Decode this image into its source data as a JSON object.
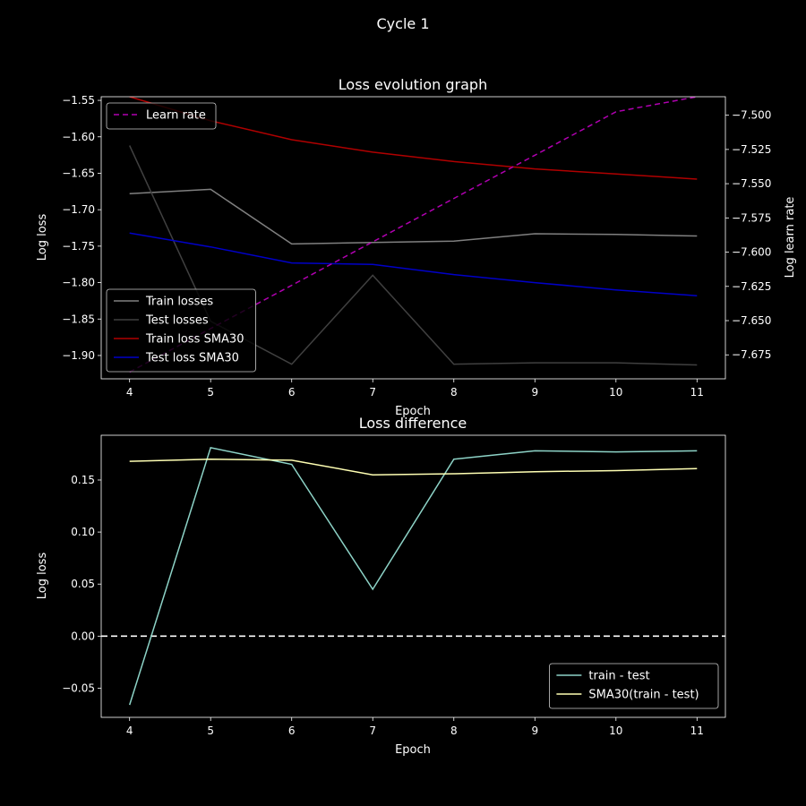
{
  "figure": {
    "suptitle": "Cycle 1"
  },
  "chart_data": [
    {
      "type": "line",
      "title": "Loss evolution graph",
      "xlabel": "Epoch",
      "ylabel": "Log loss",
      "ylabel_right": "Log learn rate",
      "x": [
        4,
        5,
        6,
        7,
        8,
        9,
        10,
        11
      ],
      "xlim": [
        3.65,
        11.35
      ],
      "ylim": [
        -1.932,
        -1.545
      ],
      "ylim_right": [
        -7.6925,
        -7.4865
      ],
      "yticks": [
        -1.55,
        -1.6,
        -1.65,
        -1.7,
        -1.75,
        -1.8,
        -1.85,
        -1.9
      ],
      "yticks_right": [
        -7.5,
        -7.525,
        -7.55,
        -7.575,
        -7.6,
        -7.625,
        -7.65,
        -7.675
      ],
      "grid": false,
      "series": [
        {
          "name": "Train losses",
          "axis": "left",
          "color": "#808080",
          "dash": "",
          "values": [
            -1.678,
            -1.672,
            -1.747,
            -1.745,
            -1.743,
            -1.733,
            -1.734,
            -1.736
          ]
        },
        {
          "name": "Test losses",
          "axis": "left",
          "color": "#404040",
          "dash": "",
          "values": [
            -1.612,
            -1.853,
            -1.912,
            -1.79,
            -1.912,
            -1.91,
            -1.91,
            -1.913
          ]
        },
        {
          "name": "Train loss SMA30",
          "axis": "left",
          "color": "#b00000",
          "dash": "",
          "values": [
            -1.545,
            -1.578,
            -1.604,
            -1.621,
            -1.634,
            -1.644,
            -1.651,
            -1.658
          ]
        },
        {
          "name": "Test loss SMA30",
          "axis": "left",
          "color": "#0000c8",
          "dash": "",
          "values": [
            -1.732,
            -1.751,
            -1.773,
            -1.775,
            -1.789,
            -1.8,
            -1.81,
            -1.818
          ]
        },
        {
          "name": "Learn rate",
          "axis": "right",
          "color": "#b000b0",
          "dash": "6,4",
          "values": [
            -7.6875,
            -7.6558,
            -7.6242,
            -7.5925,
            -7.5608,
            -7.5292,
            -7.4975,
            -7.4865
          ]
        }
      ],
      "legends": [
        {
          "placement": "upper-left",
          "entries": [
            "Learn rate"
          ]
        },
        {
          "placement": "lower-left",
          "entries": [
            "Train losses",
            "Test losses",
            "Train loss SMA30",
            "Test loss SMA30"
          ]
        }
      ]
    },
    {
      "type": "line",
      "title": "Loss difference",
      "xlabel": "Epoch",
      "ylabel": "Log loss",
      "x": [
        4,
        5,
        6,
        7,
        8,
        9,
        10,
        11
      ],
      "xlim": [
        3.65,
        11.35
      ],
      "ylim": [
        -0.078,
        0.193
      ],
      "yticks": [
        0.15,
        0.1,
        0.05,
        0.0,
        -0.05
      ],
      "grid": false,
      "hline": {
        "y": 0.0,
        "color": "#ffffff",
        "dash": "7,4"
      },
      "series": [
        {
          "name": "train - test",
          "color": "#8dd3c7",
          "values": [
            -0.066,
            0.181,
            0.165,
            0.045,
            0.17,
            0.178,
            0.177,
            0.178
          ]
        },
        {
          "name": "SMA30(train - test)",
          "color": "#ffffb3",
          "values": [
            0.168,
            0.17,
            0.169,
            0.155,
            0.156,
            0.158,
            0.159,
            0.161
          ]
        }
      ],
      "legends": [
        {
          "placement": "lower-right",
          "entries": [
            "train - test",
            "SMA30(train - test)"
          ]
        }
      ]
    }
  ]
}
